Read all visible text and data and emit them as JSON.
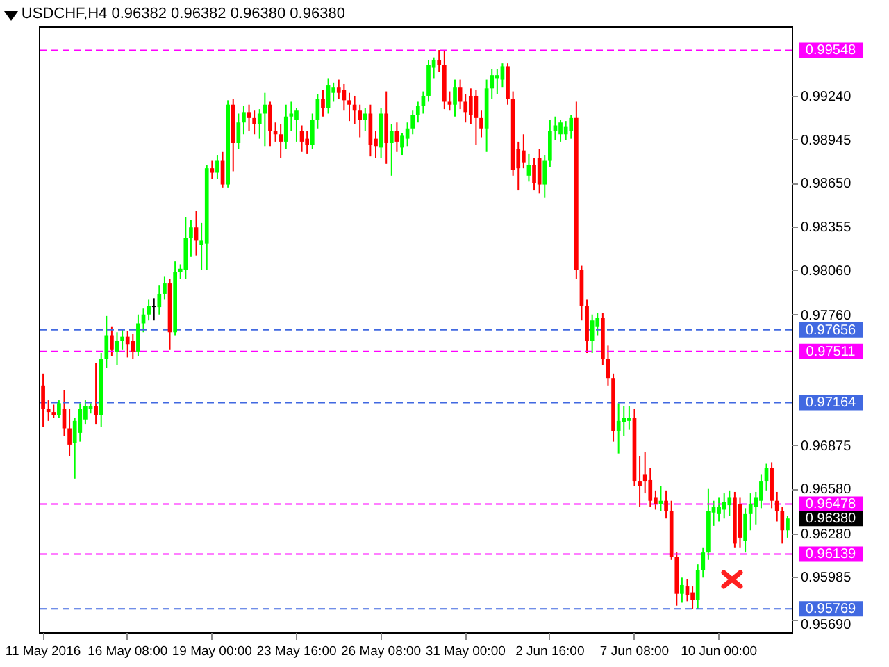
{
  "chart_data": {
    "type": "candlestick",
    "title": "USDCHF,H4  0.96382 0.96382 0.96380 0.96380",
    "categories": [
      "11 May 2016",
      null,
      null,
      null,
      null,
      null,
      null,
      null,
      null,
      null,
      null,
      null,
      null,
      null,
      null,
      null,
      "16 May 08:00",
      null,
      null,
      null,
      null,
      null,
      null,
      null,
      null,
      null,
      null,
      null,
      null,
      null,
      null,
      null,
      "19 May 00:00",
      null,
      null,
      null,
      null,
      null,
      null,
      null,
      null,
      null,
      null,
      null,
      null,
      null,
      null,
      null,
      "23 May 16:00",
      null,
      null,
      null,
      null,
      null,
      null,
      null,
      null,
      null,
      null,
      null,
      null,
      null,
      null,
      null,
      "26 May 08:00",
      null,
      null,
      null,
      null,
      null,
      null,
      null,
      null,
      null,
      null,
      null,
      null,
      null,
      null,
      null,
      "31 May 00:00",
      null,
      null,
      null,
      null,
      null,
      null,
      null,
      null,
      null,
      null,
      null,
      null,
      null,
      null,
      null,
      "2 Jun 16:00",
      null,
      null,
      null,
      null,
      null,
      null,
      null,
      null,
      null,
      null,
      null,
      null,
      null,
      null,
      null,
      "7 Jun 08:00",
      null,
      null,
      null,
      null,
      null,
      null,
      null,
      null,
      null,
      null,
      null,
      null,
      null,
      null,
      null,
      "10 Jun 00:00",
      null,
      null,
      null,
      null,
      null,
      null,
      null,
      null,
      null,
      null,
      null,
      null,
      null
    ],
    "ohlc": [
      [
        0.9728,
        0.9736,
        0.97,
        0.9712
      ],
      [
        0.9712,
        0.9718,
        0.9704,
        0.971
      ],
      [
        0.971,
        0.9715,
        0.9706,
        0.9708
      ],
      [
        0.9708,
        0.9718,
        0.9706,
        0.9716
      ],
      [
        0.9712,
        0.9725,
        0.9694,
        0.9699
      ],
      [
        0.9699,
        0.9712,
        0.968,
        0.9688
      ],
      [
        0.9689,
        0.9706,
        0.9665,
        0.9704
      ],
      [
        0.9696,
        0.9716,
        0.969,
        0.9712
      ],
      [
        0.9705,
        0.9718,
        0.9702,
        0.9714
      ],
      [
        0.9712,
        0.9716,
        0.9709,
        0.9714
      ],
      [
        0.9714,
        0.9743,
        0.9702,
        0.9708
      ],
      [
        0.9708,
        0.975,
        0.97,
        0.9746
      ],
      [
        0.9746,
        0.9775,
        0.974,
        0.9762
      ],
      [
        0.9762,
        0.9768,
        0.9748,
        0.9752
      ],
      [
        0.9751,
        0.9764,
        0.9742,
        0.9758
      ],
      [
        0.9758,
        0.9766,
        0.9752,
        0.9761
      ],
      [
        0.9761,
        0.9765,
        0.9747,
        0.9756
      ],
      [
        0.9758,
        0.9763,
        0.9746,
        0.9751
      ],
      [
        0.9751,
        0.9776,
        0.9748,
        0.977
      ],
      [
        0.977,
        0.978,
        0.9764,
        0.9776
      ],
      [
        0.9776,
        0.9786,
        0.9772,
        0.9782
      ],
      [
        0.9782,
        0.9787,
        0.9772,
        0.9781
      ],
      [
        0.9781,
        0.9796,
        0.9776,
        0.979
      ],
      [
        0.979,
        0.9802,
        0.9786,
        0.9797
      ],
      [
        0.9797,
        0.98,
        0.9752,
        0.9764
      ],
      [
        0.9764,
        0.9812,
        0.9762,
        0.9805
      ],
      [
        0.9805,
        0.981,
        0.98,
        0.9807
      ],
      [
        0.9806,
        0.9842,
        0.98,
        0.9828
      ],
      [
        0.9828,
        0.984,
        0.9815,
        0.9835
      ],
      [
        0.9835,
        0.9846,
        0.9816,
        0.9826
      ],
      [
        0.9823,
        0.9838,
        0.9806,
        0.9826
      ],
      [
        0.9824,
        0.9877,
        0.9806,
        0.9875
      ],
      [
        0.9875,
        0.988,
        0.9868,
        0.9872
      ],
      [
        0.9872,
        0.9884,
        0.9868,
        0.988
      ],
      [
        0.988,
        0.9886,
        0.9862,
        0.9864
      ],
      [
        0.9864,
        0.9921,
        0.9862,
        0.9918
      ],
      [
        0.9918,
        0.9922,
        0.9873,
        0.9892
      ],
      [
        0.9892,
        0.9912,
        0.9888,
        0.9906
      ],
      [
        0.9906,
        0.9917,
        0.9898,
        0.9913
      ],
      [
        0.9913,
        0.9918,
        0.99,
        0.9909
      ],
      [
        0.9909,
        0.9914,
        0.9898,
        0.9905
      ],
      [
        0.9905,
        0.9915,
        0.9895,
        0.9912
      ],
      [
        0.9912,
        0.9926,
        0.989,
        0.9918
      ],
      [
        0.9918,
        0.992,
        0.989,
        0.99
      ],
      [
        0.99,
        0.9906,
        0.9893,
        0.9898
      ],
      [
        0.9898,
        0.9905,
        0.9882,
        0.9893
      ],
      [
        0.9893,
        0.9918,
        0.9888,
        0.991
      ],
      [
        0.991,
        0.992,
        0.99,
        0.9912
      ],
      [
        0.9908,
        0.9916,
        0.9893,
        0.9914
      ],
      [
        0.99,
        0.9904,
        0.9886,
        0.9893
      ],
      [
        0.9895,
        0.99,
        0.9885,
        0.9891
      ],
      [
        0.9891,
        0.9912,
        0.9888,
        0.9908
      ],
      [
        0.9908,
        0.9925,
        0.9902,
        0.9922
      ],
      [
        0.9922,
        0.9928,
        0.991,
        0.9916
      ],
      [
        0.9916,
        0.9936,
        0.9912,
        0.9931
      ],
      [
        0.9926,
        0.9933,
        0.992,
        0.993
      ],
      [
        0.993,
        0.9935,
        0.9922,
        0.9926
      ],
      [
        0.9928,
        0.9932,
        0.9914,
        0.9921
      ],
      [
        0.9921,
        0.9926,
        0.9907,
        0.9918
      ],
      [
        0.9918,
        0.9924,
        0.9905,
        0.9914
      ],
      [
        0.9914,
        0.9918,
        0.9896,
        0.9908
      ],
      [
        0.9908,
        0.9916,
        0.99,
        0.9912
      ],
      [
        0.9912,
        0.9918,
        0.9883,
        0.9891
      ],
      [
        0.9895,
        0.99,
        0.9882,
        0.989
      ],
      [
        0.9889,
        0.9916,
        0.9882,
        0.9912
      ],
      [
        0.9912,
        0.9927,
        0.9878,
        0.9892
      ],
      [
        0.9892,
        0.9905,
        0.987,
        0.99
      ],
      [
        0.99,
        0.9906,
        0.9886,
        0.9893
      ],
      [
        0.9889,
        0.9899,
        0.9884,
        0.9897
      ],
      [
        0.9895,
        0.9906,
        0.989,
        0.9902
      ],
      [
        0.9902,
        0.9914,
        0.9898,
        0.9911
      ],
      [
        0.9911,
        0.992,
        0.9906,
        0.9917
      ],
      [
        0.9917,
        0.9927,
        0.9912,
        0.9924
      ],
      [
        0.9924,
        0.9948,
        0.992,
        0.9945
      ],
      [
        0.9943,
        0.995,
        0.9936,
        0.9948
      ],
      [
        0.9948,
        0.9955,
        0.994,
        0.9945
      ],
      [
        0.9945,
        0.9955,
        0.9915,
        0.992
      ],
      [
        0.992,
        0.9927,
        0.9914,
        0.9918
      ],
      [
        0.9918,
        0.9935,
        0.991,
        0.993
      ],
      [
        0.993,
        0.9935,
        0.9915,
        0.992
      ],
      [
        0.992,
        0.9925,
        0.9906,
        0.9913
      ],
      [
        0.9924,
        0.9929,
        0.9905,
        0.9911
      ],
      [
        0.9924,
        0.9928,
        0.9891,
        0.9909
      ],
      [
        0.9909,
        0.9914,
        0.9896,
        0.9902
      ],
      [
        0.9902,
        0.9935,
        0.9886,
        0.9929
      ],
      [
        0.9929,
        0.9942,
        0.9922,
        0.9938
      ],
      [
        0.9936,
        0.9942,
        0.9925,
        0.9938
      ],
      [
        0.9935,
        0.9946,
        0.993,
        0.9944
      ],
      [
        0.9944,
        0.9946,
        0.9918,
        0.9922
      ],
      [
        0.9922,
        0.9927,
        0.987,
        0.9874
      ],
      [
        0.9888,
        0.9893,
        0.986,
        0.9875
      ],
      [
        0.9887,
        0.9898,
        0.9875,
        0.9879
      ],
      [
        0.987,
        0.9885,
        0.9866,
        0.9877
      ],
      [
        0.9877,
        0.9882,
        0.986,
        0.9865
      ],
      [
        0.9882,
        0.9888,
        0.9858,
        0.9864
      ],
      [
        0.9864,
        0.9884,
        0.9855,
        0.988
      ],
      [
        0.988,
        0.9908,
        0.9876,
        0.99
      ],
      [
        0.99,
        0.991,
        0.9894,
        0.9904
      ],
      [
        0.9898,
        0.9908,
        0.9893,
        0.9906
      ],
      [
        0.9898,
        0.9907,
        0.9894,
        0.9903
      ],
      [
        0.99,
        0.9911,
        0.9895,
        0.9909
      ],
      [
        0.9909,
        0.992,
        0.98,
        0.9806
      ],
      [
        0.9806,
        0.9809,
        0.9772,
        0.9782
      ],
      [
        0.9782,
        0.9786,
        0.975,
        0.9758
      ],
      [
        0.9758,
        0.9776,
        0.975,
        0.9772
      ],
      [
        0.9768,
        0.9777,
        0.9762,
        0.9774
      ],
      [
        0.9774,
        0.9777,
        0.9742,
        0.9746
      ],
      [
        0.9746,
        0.9755,
        0.9728,
        0.9733
      ],
      [
        0.9733,
        0.9736,
        0.969,
        0.9697
      ],
      [
        0.9697,
        0.9716,
        0.9682,
        0.9704
      ],
      [
        0.9703,
        0.9714,
        0.9694,
        0.9706
      ],
      [
        0.9704,
        0.9714,
        0.9698,
        0.9706
      ],
      [
        0.9706,
        0.9712,
        0.966,
        0.9663
      ],
      [
        0.9663,
        0.968,
        0.9646,
        0.966
      ],
      [
        0.9668,
        0.9683,
        0.9655,
        0.9663
      ],
      [
        0.9664,
        0.9672,
        0.9646,
        0.965
      ],
      [
        0.9652,
        0.9657,
        0.9644,
        0.9648
      ],
      [
        0.9648,
        0.966,
        0.9643,
        0.965
      ],
      [
        0.965,
        0.9657,
        0.9638,
        0.9643
      ],
      [
        0.9643,
        0.965,
        0.961,
        0.9612
      ],
      [
        0.9612,
        0.9615,
        0.9579,
        0.9587
      ],
      [
        0.9587,
        0.9598,
        0.9581,
        0.9593
      ],
      [
        0.9592,
        0.9597,
        0.9582,
        0.9586
      ],
      [
        0.9588,
        0.9592,
        0.9577,
        0.9583
      ],
      [
        0.9583,
        0.9607,
        0.9577,
        0.9603
      ],
      [
        0.9603,
        0.9618,
        0.9598,
        0.9615
      ],
      [
        0.9615,
        0.9658,
        0.961,
        0.9643
      ],
      [
        0.9642,
        0.965,
        0.9633,
        0.9646
      ],
      [
        0.9641,
        0.9652,
        0.9636,
        0.9646
      ],
      [
        0.9644,
        0.9655,
        0.9638,
        0.9649
      ],
      [
        0.9647,
        0.9657,
        0.964,
        0.9652
      ],
      [
        0.9652,
        0.9656,
        0.9618,
        0.9621
      ],
      [
        0.9648,
        0.9652,
        0.9618,
        0.9625
      ],
      [
        0.9623,
        0.9645,
        0.9615,
        0.9641
      ],
      [
        0.9641,
        0.9655,
        0.963,
        0.9648
      ],
      [
        0.9646,
        0.9656,
        0.9634,
        0.9652
      ],
      [
        0.965,
        0.9668,
        0.9645,
        0.9663
      ],
      [
        0.9663,
        0.9675,
        0.9657,
        0.9672
      ],
      [
        0.9672,
        0.9676,
        0.9645,
        0.965
      ],
      [
        0.965,
        0.9656,
        0.9636,
        0.9643
      ],
      [
        0.9643,
        0.9646,
        0.9621,
        0.963
      ],
      [
        0.963,
        0.964,
        0.9625,
        0.9638
      ]
    ],
    "colors": [
      "#ff0000",
      "#ff0000",
      "#ff0000",
      "#00ff00",
      "#ff0000",
      "#ff0000",
      "#00ff00",
      "#00ff00",
      "#00ff00",
      "#00ff00",
      "#ff0000",
      "#00ff00",
      "#00ff00",
      "#ff0000",
      "#00ff00",
      "#00ff00",
      "#ff0000",
      "#ff0000",
      "#00ff00",
      "#00ff00",
      "#00ff00",
      "#000000",
      "#00ff00",
      "#00ff00",
      "#ff0000",
      "#00ff00",
      "#00ff00",
      "#00ff00",
      "#00ff00",
      "#ff0000",
      "#00ff00",
      "#00ff00",
      "#ff0000",
      "#00ff00",
      "#ff0000",
      "#00ff00",
      "#ff0000",
      "#00ff00",
      "#00ff00",
      "#ff0000",
      "#ff0000",
      "#00ff00",
      "#00ff00",
      "#ff0000",
      "#ff0000",
      "#ff0000",
      "#00ff00",
      "#00ff00",
      "#00ff00",
      "#ff0000",
      "#ff0000",
      "#00ff00",
      "#00ff00",
      "#ff0000",
      "#00ff00",
      "#00ff00",
      "#ff0000",
      "#ff0000",
      "#ff0000",
      "#ff0000",
      "#ff0000",
      "#00ff00",
      "#ff0000",
      "#ff0000",
      "#00ff00",
      "#ff0000",
      "#00ff00",
      "#ff0000",
      "#00ff00",
      "#00ff00",
      "#00ff00",
      "#00ff00",
      "#00ff00",
      "#00ff00",
      "#00ff00",
      "#ff0000",
      "#ff0000",
      "#ff0000",
      "#00ff00",
      "#ff0000",
      "#ff0000",
      "#ff0000",
      "#ff0000",
      "#ff0000",
      "#00ff00",
      "#00ff00",
      "#00ff00",
      "#00ff00",
      "#ff0000",
      "#ff0000",
      "#ff0000",
      "#ff0000",
      "#00ff00",
      "#ff0000",
      "#ff0000",
      "#00ff00",
      "#00ff00",
      "#00ff00",
      "#00ff00",
      "#00ff00",
      "#00ff00",
      "#ff0000",
      "#ff0000",
      "#ff0000",
      "#00ff00",
      "#00ff00",
      "#ff0000",
      "#ff0000",
      "#ff0000",
      "#00ff00",
      "#00ff00",
      "#00ff00",
      "#ff0000",
      "#ff0000",
      "#ff0000",
      "#ff0000",
      "#ff0000",
      "#00ff00",
      "#ff0000",
      "#ff0000",
      "#ff0000",
      "#00ff00",
      "#ff0000",
      "#ff0000",
      "#00ff00",
      "#00ff00",
      "#00ff00",
      "#00ff00",
      "#00ff00",
      "#00ff00",
      "#00ff00",
      "#ff0000",
      "#ff0000",
      "#00ff00",
      "#00ff00",
      "#00ff00",
      "#00ff00",
      "#00ff00",
      "#ff0000",
      "#ff0000",
      "#ff0000",
      "#00ff00"
    ],
    "ylim": [
      0.9561,
      0.9971
    ],
    "yticks": [
      {
        "value": 0.9924,
        "label": "0.99240"
      },
      0.98945,
      {
        "value": 0.9865,
        "label": "0.98650"
      },
      0.98355,
      {
        "value": 0.9806,
        "label": "0.98060"
      },
      {
        "value": 0.9776,
        "label": "0.97760"
      },
      0.96875,
      {
        "value": 0.9658,
        "label": "0.96580"
      },
      {
        "value": 0.9628,
        "label": "0.96280"
      },
      0.95985,
      {
        "value": 0.9569,
        "label": "0.95690"
      }
    ],
    "ref_lines": [
      {
        "axis": "y",
        "value": 0.99548,
        "label": "0.99548",
        "color": "#ff00ff",
        "line_style": "dashed"
      },
      {
        "axis": "y",
        "value": 0.97656,
        "label": "0.97656",
        "color": "#4169e1",
        "line_style": "dashed"
      },
      {
        "axis": "y",
        "value": 0.97511,
        "label": "0.97511",
        "color": "#ff00ff",
        "line_style": "dashed"
      },
      {
        "axis": "y",
        "value": 0.97164,
        "label": "0.97164",
        "color": "#4169e1",
        "line_style": "dashed"
      },
      {
        "axis": "y",
        "value": 0.96478,
        "label": "0.96478",
        "color": "#ff00ff",
        "line_style": "dashed"
      },
      {
        "axis": "y",
        "value": 0.96139,
        "label": "0.96139",
        "color": "#ff00ff",
        "line_style": "dashed"
      },
      {
        "axis": "y",
        "value": 0.95769,
        "label": "0.95769",
        "color": "#4169e1",
        "line_style": "dashed"
      }
    ],
    "annotations": [
      "0.96380"
    ]
  }
}
